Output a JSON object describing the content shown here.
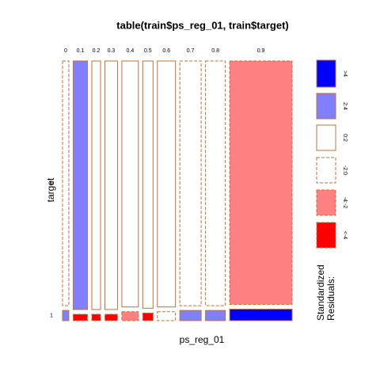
{
  "chart_data": {
    "type": "mosaic",
    "title": "table(train$ps_reg_01, train$target)",
    "xlabel": "ps_reg_01",
    "ylabel": "target",
    "categories": [
      "0",
      "0.1",
      "0.2",
      "0.3",
      "0.4",
      "0.5",
      "0.6",
      "0.7",
      "0.8",
      "0.9"
    ],
    "column_share": [
      0.033,
      0.075,
      0.046,
      0.066,
      0.087,
      0.054,
      0.095,
      0.112,
      0.104,
      0.328
    ],
    "series": [
      {
        "name": "0",
        "values": [
          0.96,
          0.975,
          0.975,
          0.975,
          0.965,
          0.97,
          0.965,
          0.96,
          0.96,
          0.955
        ],
        "shades": [
          "-2:0",
          "2:4",
          "0:2",
          "0:2",
          "0:2",
          "0:2",
          "0:2",
          "-2:0",
          "-2:0",
          "-4:-2"
        ]
      },
      {
        "name": "1",
        "values": [
          0.04,
          0.025,
          0.025,
          0.025,
          0.035,
          0.03,
          0.035,
          0.04,
          0.04,
          0.045
        ],
        "shades": [
          "2:4",
          "<-4",
          "<-4",
          "<-4",
          "-4:-2",
          "<-4",
          "-2:0",
          "2:4",
          "2:4",
          ">4"
        ]
      }
    ],
    "legend": {
      "title": [
        "Standardized",
        "Residuals:"
      ],
      "levels": [
        {
          "label": ">4",
          "color": "#0000ff",
          "dashed": false
        },
        {
          "label": "2:4",
          "color": "#8080ff",
          "dashed": false
        },
        {
          "label": "0:2",
          "color": "#ffffff",
          "dashed": false
        },
        {
          "label": "-2:0",
          "color": "#ffffff",
          "dashed": true
        },
        {
          "label": "-4:-2",
          "color": "#ff8080",
          "dashed": true
        },
        {
          "label": "<-4",
          "color": "#ff0000",
          "dashed": true
        }
      ]
    },
    "border_color": "#c0703a"
  }
}
